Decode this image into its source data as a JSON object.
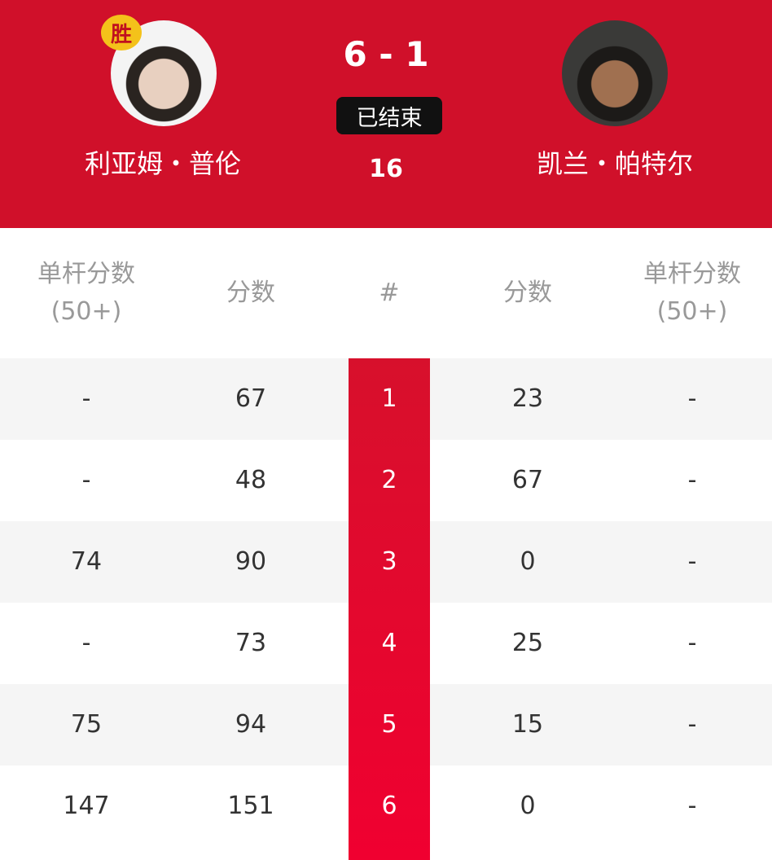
{
  "match": {
    "left_player": {
      "name": "利亚姆・普伦",
      "badge": "胜"
    },
    "right_player": {
      "name": "凯兰・帕特尔"
    },
    "score": "6 - 1",
    "status": "已结束",
    "frames": "16"
  },
  "table": {
    "headers": {
      "left_break": [
        "单杆分数",
        "(50+)"
      ],
      "left_score": "分数",
      "frame": "#",
      "right_score": "分数",
      "right_break": [
        "单杆分数",
        "(50+)"
      ]
    },
    "rows": [
      {
        "left_break": "-",
        "left_score": "67",
        "frame": "1",
        "right_score": "23",
        "right_break": "-"
      },
      {
        "left_break": "-",
        "left_score": "48",
        "frame": "2",
        "right_score": "67",
        "right_break": "-"
      },
      {
        "left_break": "74",
        "left_score": "90",
        "frame": "3",
        "right_score": "0",
        "right_break": "-"
      },
      {
        "left_break": "-",
        "left_score": "73",
        "frame": "4",
        "right_score": "25",
        "right_break": "-"
      },
      {
        "left_break": "75",
        "left_score": "94",
        "frame": "5",
        "right_score": "15",
        "right_break": "-"
      },
      {
        "left_break": "147",
        "left_score": "151",
        "frame": "6",
        "right_score": "0",
        "right_break": "-"
      }
    ]
  },
  "colors": {
    "header_red": "#d0102a",
    "frame_column_red": "#e8102e",
    "win_badge": "#f4c21a",
    "row_alt": "#f5f5f5"
  }
}
